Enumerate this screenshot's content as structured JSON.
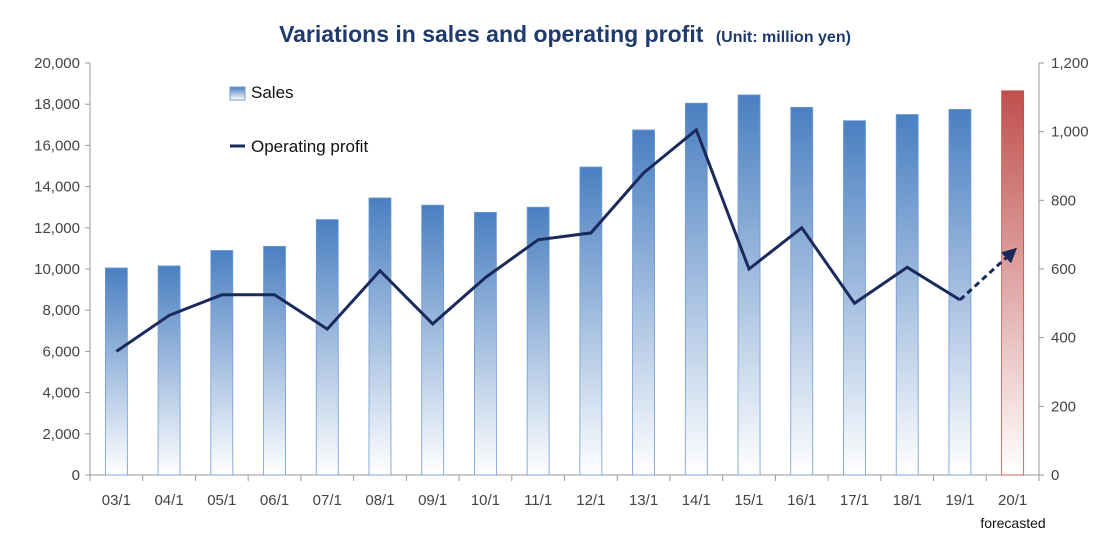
{
  "chart_data": {
    "type": "bar",
    "title": "Variations in sales and operating profit",
    "title_unit": "(Unit: million yen)",
    "categories": [
      "03/1",
      "04/1",
      "05/1",
      "06/1",
      "07/1",
      "08/1",
      "09/1",
      "10/1",
      "11/1",
      "12/1",
      "13/1",
      "14/1",
      "15/1",
      "16/1",
      "17/1",
      "18/1",
      "19/1",
      "20/1"
    ],
    "series": [
      {
        "name": "Sales",
        "type": "bar",
        "axis": "left",
        "values": [
          10050,
          10150,
          10900,
          11100,
          12400,
          13450,
          13100,
          12750,
          13000,
          14950,
          16750,
          18050,
          18450,
          17850,
          17200,
          17500,
          17750,
          18650
        ]
      },
      {
        "name": "Operating profit",
        "type": "line",
        "axis": "right",
        "values": [
          360,
          465,
          525,
          525,
          425,
          595,
          440,
          575,
          685,
          705,
          880,
          1005,
          600,
          720,
          500,
          605,
          510,
          650
        ]
      }
    ],
    "forecast_index": 17,
    "forecast_note": "forecasted",
    "y_left": {
      "min": 0,
      "max": 20000,
      "step": 2000,
      "tick_labels": [
        "0",
        "2,000",
        "4,000",
        "6,000",
        "8,000",
        "10,000",
        "12,000",
        "14,000",
        "16,000",
        "18,000",
        "20,000"
      ]
    },
    "y_right": {
      "min": 0,
      "max": 1200,
      "step": 200,
      "tick_labels": [
        "0",
        "200",
        "400",
        "600",
        "800",
        "1,000",
        "1,200"
      ]
    },
    "grid": false,
    "legend_position": "top-left",
    "colors": {
      "bar_top": "#4a7fc1",
      "bar_bottom": "#ffffff",
      "bar_edge": "#6f9bd3",
      "forecast_top": "#c0504d",
      "forecast_bottom": "#ffffff",
      "line": "#1b2a5c",
      "title": "#1f3a6e",
      "axis": "#9a9a9a"
    }
  }
}
